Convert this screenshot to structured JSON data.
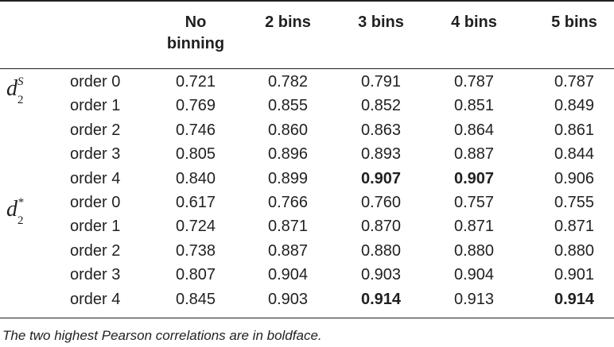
{
  "header": {
    "col0": "No binning",
    "col0_line1": "No",
    "col0_line2": "binning",
    "col1": "2 bins",
    "col2": "3 bins",
    "col3": "4 bins",
    "col4": "5 bins"
  },
  "groups": [
    {
      "symbol": "d",
      "subscript": "2",
      "superscript": "S",
      "rows": [
        {
          "label": "order 0",
          "values": [
            "0.721",
            "0.782",
            "0.791",
            "0.787",
            "0.787"
          ]
        },
        {
          "label": "order 1",
          "values": [
            "0.769",
            "0.855",
            "0.852",
            "0.851",
            "0.849"
          ]
        },
        {
          "label": "order 2",
          "values": [
            "0.746",
            "0.860",
            "0.863",
            "0.864",
            "0.861"
          ]
        },
        {
          "label": "order 3",
          "values": [
            "0.805",
            "0.896",
            "0.893",
            "0.887",
            "0.844"
          ]
        },
        {
          "label": "order 4",
          "values": [
            "0.840",
            "0.899",
            "0.907",
            "0.907",
            "0.906"
          ],
          "bold": [
            false,
            false,
            true,
            true,
            false
          ]
        }
      ]
    },
    {
      "symbol": "d",
      "subscript": "2",
      "superscript": "*",
      "rows": [
        {
          "label": "order 0",
          "values": [
            "0.617",
            "0.766",
            "0.760",
            "0.757",
            "0.755"
          ]
        },
        {
          "label": "order 1",
          "values": [
            "0.724",
            "0.871",
            "0.870",
            "0.871",
            "0.871"
          ]
        },
        {
          "label": "order 2",
          "values": [
            "0.738",
            "0.887",
            "0.880",
            "0.880",
            "0.880"
          ]
        },
        {
          "label": "order 3",
          "values": [
            "0.807",
            "0.904",
            "0.903",
            "0.904",
            "0.901"
          ]
        },
        {
          "label": "order 4",
          "values": [
            "0.845",
            "0.903",
            "0.914",
            "0.913",
            "0.914"
          ],
          "bold": [
            false,
            false,
            true,
            false,
            true
          ]
        }
      ]
    }
  ],
  "footnote": "The two highest Pearson correlations are in boldface."
}
